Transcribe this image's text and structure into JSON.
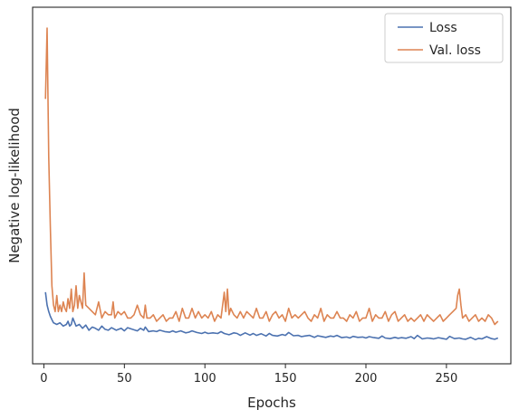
{
  "chart_data": {
    "type": "line",
    "xlabel": "Epochs",
    "ylabel": "Negative log-likelihood",
    "xlim": [
      -7,
      290
    ],
    "ylim": [
      0,
      100
    ],
    "xticks": [
      0,
      50,
      100,
      150,
      200,
      250
    ],
    "y_tick_labels_shown": false,
    "grid": false,
    "legend_position": "top-right",
    "series": [
      {
        "name": "Loss",
        "color": "#4c72b0",
        "x": [
          1,
          2,
          3,
          4,
          5,
          6,
          8,
          10,
          12,
          14,
          15,
          16,
          17,
          18,
          20,
          22,
          24,
          26,
          28,
          30,
          32,
          34,
          36,
          38,
          40,
          42,
          45,
          48,
          50,
          52,
          55,
          58,
          60,
          62,
          63,
          65,
          68,
          70,
          72,
          75,
          78,
          80,
          82,
          85,
          88,
          90,
          92,
          95,
          98,
          100,
          102,
          105,
          108,
          110,
          112,
          115,
          118,
          120,
          122,
          125,
          128,
          130,
          132,
          135,
          138,
          140,
          142,
          145,
          148,
          150,
          152,
          155,
          158,
          160,
          162,
          165,
          168,
          170,
          172,
          175,
          178,
          180,
          182,
          185,
          188,
          190,
          192,
          195,
          198,
          200,
          202,
          205,
          208,
          210,
          212,
          215,
          218,
          220,
          222,
          225,
          228,
          230,
          232,
          235,
          238,
          240,
          242,
          245,
          248,
          250,
          252,
          255,
          258,
          260,
          262,
          265,
          268,
          270,
          272,
          275,
          278,
          280,
          282
        ],
        "values": [
          18,
          14,
          12,
          10.5,
          9.5,
          8.5,
          8,
          8.5,
          7.5,
          8,
          9,
          7.5,
          8,
          10,
          7.5,
          8,
          6.8,
          7.8,
          6.2,
          7.2,
          6.8,
          6.2,
          7.5,
          6.5,
          6.2,
          7,
          6.2,
          6.8,
          6,
          7,
          6.5,
          6,
          6.8,
          6.2,
          7.2,
          5.8,
          6,
          5.8,
          6.2,
          5.8,
          5.6,
          6,
          5.6,
          6,
          5.4,
          5.6,
          6,
          5.5,
          5.2,
          5.6,
          5.2,
          5.4,
          5.2,
          5.8,
          5.2,
          4.8,
          5.4,
          5.2,
          4.6,
          5.4,
          4.7,
          5.2,
          4.6,
          5.1,
          4.4,
          5.2,
          4.6,
          4.4,
          4.9,
          4.6,
          5.5,
          4.5,
          4.6,
          4.2,
          4.4,
          4.6,
          4,
          4.5,
          4.3,
          4,
          4.4,
          4.2,
          4.6,
          3.9,
          4.1,
          3.8,
          4.3,
          4,
          4.1,
          3.8,
          4.2,
          3.9,
          3.7,
          4.4,
          3.8,
          3.6,
          4,
          3.7,
          3.9,
          3.7,
          4.2,
          3.6,
          4.6,
          3.5,
          3.8,
          3.7,
          3.5,
          3.9,
          3.6,
          3.4,
          4.3,
          3.6,
          3.8,
          3.5,
          3.4,
          4,
          3.3,
          3.7,
          3.5,
          4.2,
          3.6,
          3.4,
          3.8
        ]
      },
      {
        "name": "Val. loss",
        "color": "#dd8452",
        "x": [
          1,
          2,
          3,
          4,
          5,
          6,
          7,
          8,
          9,
          10,
          11,
          12,
          13,
          14,
          15,
          16,
          17,
          18,
          19,
          20,
          21,
          22,
          23,
          24,
          25,
          26,
          28,
          30,
          32,
          34,
          36,
          38,
          40,
          42,
          43,
          44,
          46,
          48,
          50,
          52,
          54,
          56,
          58,
          60,
          62,
          63,
          64,
          66,
          68,
          70,
          72,
          74,
          76,
          78,
          80,
          82,
          84,
          86,
          88,
          90,
          92,
          94,
          96,
          98,
          100,
          102,
          104,
          106,
          108,
          110,
          111,
          112,
          113,
          114,
          115,
          116,
          118,
          120,
          122,
          124,
          126,
          128,
          130,
          132,
          134,
          136,
          138,
          140,
          142,
          144,
          146,
          148,
          150,
          152,
          154,
          156,
          158,
          160,
          162,
          164,
          166,
          168,
          170,
          172,
          174,
          176,
          178,
          180,
          182,
          184,
          186,
          188,
          190,
          192,
          194,
          196,
          198,
          200,
          202,
          204,
          206,
          208,
          210,
          212,
          214,
          216,
          218,
          220,
          222,
          224,
          226,
          228,
          230,
          232,
          234,
          236,
          238,
          240,
          242,
          244,
          246,
          248,
          250,
          252,
          254,
          256,
          257,
          258,
          259,
          260,
          262,
          264,
          266,
          268,
          270,
          272,
          274,
          276,
          278,
          280,
          282
        ],
        "values": [
          78,
          100,
          60,
          38,
          20,
          14,
          12,
          17,
          12,
          14,
          12,
          15,
          13,
          12,
          16,
          13,
          19,
          12,
          14,
          20,
          13,
          17,
          15,
          13,
          24,
          14,
          13,
          12,
          11,
          15,
          10,
          12,
          11,
          11,
          15,
          10,
          12,
          11,
          12,
          10,
          10,
          11,
          14,
          11,
          10,
          14,
          10,
          10,
          11,
          9,
          10,
          11,
          9,
          10,
          10,
          12,
          9,
          13,
          10,
          10,
          13,
          10,
          12,
          10,
          11,
          10,
          12,
          9,
          11,
          10,
          14,
          18,
          12,
          19,
          11,
          13,
          11,
          10,
          12,
          10,
          12,
          11,
          10,
          13,
          10,
          10,
          12,
          9,
          11,
          12,
          10,
          11,
          9,
          13,
          10,
          11,
          10,
          11,
          12,
          10,
          9,
          11,
          10,
          13,
          9,
          11,
          10,
          10,
          12,
          10,
          10,
          9,
          11,
          10,
          12,
          9,
          10,
          10,
          13,
          9,
          11,
          10,
          10,
          12,
          9,
          11,
          12,
          9,
          10,
          11,
          9,
          10,
          9,
          10,
          11,
          9,
          11,
          10,
          9,
          10,
          11,
          9,
          10,
          11,
          12,
          13,
          17,
          19,
          14,
          10,
          11,
          9,
          10,
          11,
          9,
          10,
          9,
          11,
          10,
          8,
          9
        ]
      }
    ]
  }
}
